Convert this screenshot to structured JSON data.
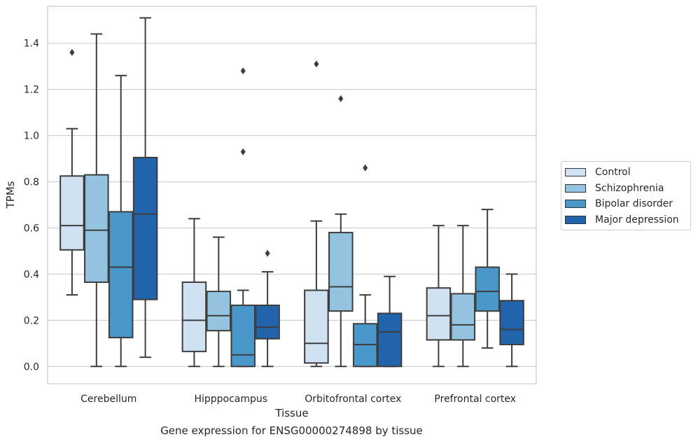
{
  "chart_data": {
    "type": "box",
    "xlabel": "Tissue",
    "ylabel": "TPMs",
    "caption": "Gene expression for ENSG00000274898 by tissue",
    "ylim": [
      -0.075,
      1.56
    ],
    "yticks": [
      0.0,
      0.2,
      0.4,
      0.6,
      0.8,
      1.0,
      1.2,
      1.4
    ],
    "grid": "horizontal",
    "legend_position": "right",
    "categories": [
      "Cerebellum",
      "Hipppocampus",
      "Orbitofrontal cortex",
      "Prefrontal cortex"
    ],
    "series": [
      {
        "name": "Control",
        "color": "#d0e1f2",
        "boxes": [
          {
            "whislo": 0.31,
            "q1": 0.505,
            "med": 0.61,
            "q3": 0.825,
            "whishi": 1.03,
            "fliers": [
              1.36
            ]
          },
          {
            "whislo": 0.0,
            "q1": 0.065,
            "med": 0.2,
            "q3": 0.365,
            "whishi": 0.64,
            "fliers": []
          },
          {
            "whislo": 0.0,
            "q1": 0.015,
            "med": 0.1,
            "q3": 0.33,
            "whishi": 0.63,
            "fliers": [
              1.31
            ]
          },
          {
            "whislo": 0.0,
            "q1": 0.115,
            "med": 0.22,
            "q3": 0.34,
            "whishi": 0.61,
            "fliers": []
          }
        ]
      },
      {
        "name": "Schizophrenia",
        "color": "#94c4df",
        "boxes": [
          {
            "whislo": 0.0,
            "q1": 0.365,
            "med": 0.59,
            "q3": 0.83,
            "whishi": 1.44,
            "fliers": []
          },
          {
            "whislo": 0.0,
            "q1": 0.155,
            "med": 0.22,
            "q3": 0.325,
            "whishi": 0.56,
            "fliers": []
          },
          {
            "whislo": 0.0,
            "q1": 0.24,
            "med": 0.345,
            "q3": 0.58,
            "whishi": 0.66,
            "fliers": [
              1.16
            ]
          },
          {
            "whislo": 0.0,
            "q1": 0.115,
            "med": 0.18,
            "q3": 0.315,
            "whishi": 0.61,
            "fliers": []
          }
        ]
      },
      {
        "name": "Bipolar disorder",
        "color": "#4a98c9",
        "boxes": [
          {
            "whislo": 0.0,
            "q1": 0.125,
            "med": 0.43,
            "q3": 0.67,
            "whishi": 1.26,
            "fliers": []
          },
          {
            "whislo": 0.0,
            "q1": 0.0,
            "med": 0.05,
            "q3": 0.265,
            "whishi": 0.33,
            "fliers": [
              0.93,
              1.28
            ]
          },
          {
            "whislo": 0.0,
            "q1": 0.0,
            "med": 0.095,
            "q3": 0.185,
            "whishi": 0.31,
            "fliers": [
              0.86
            ]
          },
          {
            "whislo": 0.08,
            "q1": 0.24,
            "med": 0.325,
            "q3": 0.43,
            "whishi": 0.68,
            "fliers": []
          }
        ]
      },
      {
        "name": "Major depression",
        "color": "#2164ab",
        "boxes": [
          {
            "whislo": 0.04,
            "q1": 0.29,
            "med": 0.66,
            "q3": 0.905,
            "whishi": 1.51,
            "fliers": []
          },
          {
            "whislo": 0.0,
            "q1": 0.12,
            "med": 0.17,
            "q3": 0.265,
            "whishi": 0.41,
            "fliers": [
              0.49
            ]
          },
          {
            "whislo": 0.0,
            "q1": 0.0,
            "med": 0.15,
            "q3": 0.23,
            "whishi": 0.39,
            "fliers": []
          },
          {
            "whislo": 0.0,
            "q1": 0.095,
            "med": 0.16,
            "q3": 0.285,
            "whishi": 0.4,
            "fliers": []
          }
        ]
      }
    ]
  }
}
